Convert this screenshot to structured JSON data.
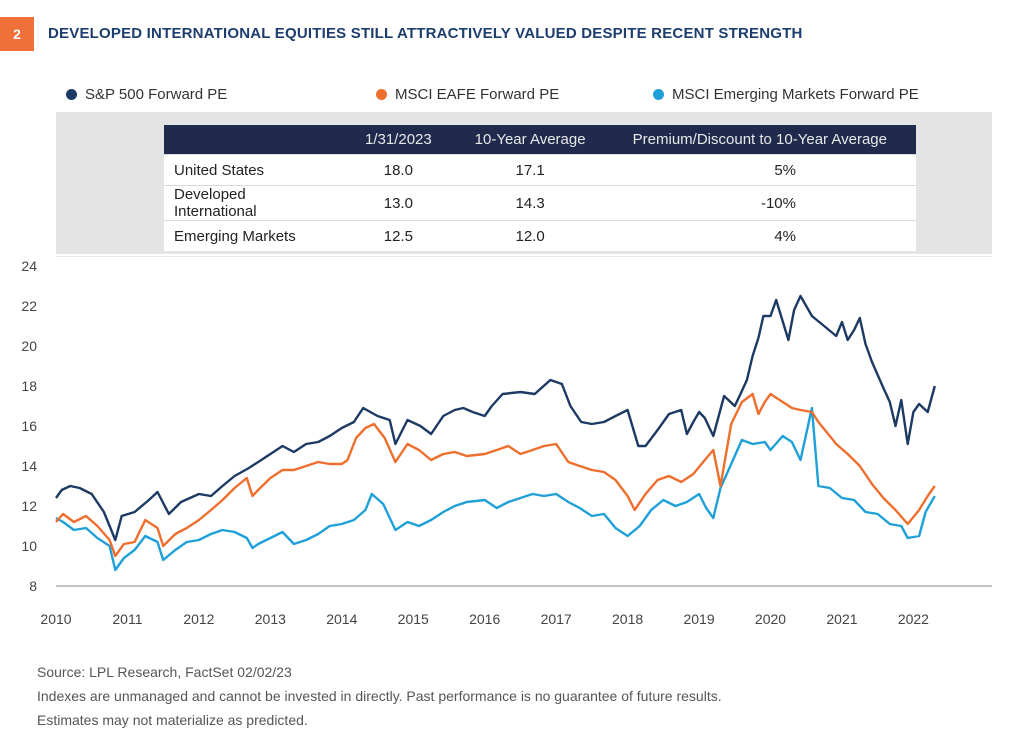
{
  "badge": "2",
  "title": "DEVELOPED INTERNATIONAL EQUITIES STILL ATTRACTIVELY VALUED DESPITE RECENT STRENGTH",
  "legend": [
    {
      "name": "S&P 500 Forward PE",
      "color": "#1c3a63"
    },
    {
      "name": "MSCI EAFE Forward PE",
      "color": "#ee6f2d"
    },
    {
      "name": "MSCI Emerging Markets Forward PE",
      "color": "#1fa0d8"
    }
  ],
  "table": {
    "headers": [
      "",
      "1/31/2023",
      "10-Year Average",
      "Premium/Discount to 10-Year Average"
    ],
    "rows": [
      [
        "United States",
        "18.0",
        "17.1",
        "5%"
      ],
      [
        "Developed International",
        "13.0",
        "14.3",
        "-10%"
      ],
      [
        "Emerging Markets",
        "12.5",
        "12.0",
        "4%"
      ]
    ]
  },
  "footer": {
    "source": "Source: LPL Research, FactSet  02/02/23",
    "line2": "Indexes are unmanaged and cannot be invested in directly. Past performance is no guarantee of future results.",
    "line3": "Estimates may not materialize as predicted."
  },
  "chart_data": {
    "type": "line",
    "ylim": [
      8,
      24
    ],
    "yticks": [
      8,
      10,
      12,
      14,
      16,
      18,
      20,
      22,
      24
    ],
    "xlim": [
      2010,
      2023.1
    ],
    "xticks": [
      "2010",
      "2011",
      "2012",
      "2013",
      "2014",
      "2015",
      "2016",
      "2017",
      "2018",
      "2019",
      "2020",
      "2021",
      "2022"
    ],
    "grid": false,
    "series": [
      {
        "name": "S&P 500 Forward PE",
        "color": "#1c3a63",
        "points": [
          [
            2010,
            12.4
          ],
          [
            2010.08,
            12.8
          ],
          [
            2010.2,
            13.0
          ],
          [
            2010.33,
            12.9
          ],
          [
            2010.5,
            12.6
          ],
          [
            2010.67,
            11.7
          ],
          [
            2010.83,
            10.3
          ],
          [
            2010.92,
            11.5
          ],
          [
            2011.1,
            11.7
          ],
          [
            2011.3,
            12.3
          ],
          [
            2011.42,
            12.7
          ],
          [
            2011.58,
            11.6
          ],
          [
            2011.75,
            12.2
          ],
          [
            2012,
            12.6
          ],
          [
            2012.17,
            12.5
          ],
          [
            2012.33,
            13.0
          ],
          [
            2012.5,
            13.5
          ],
          [
            2012.7,
            13.9
          ],
          [
            2012.83,
            14.2
          ],
          [
            2013,
            14.6
          ],
          [
            2013.17,
            15.0
          ],
          [
            2013.33,
            14.7
          ],
          [
            2013.5,
            15.1
          ],
          [
            2013.67,
            15.2
          ],
          [
            2013.83,
            15.5
          ],
          [
            2014,
            15.9
          ],
          [
            2014.17,
            16.2
          ],
          [
            2014.3,
            16.9
          ],
          [
            2014.5,
            16.5
          ],
          [
            2014.67,
            16.3
          ],
          [
            2014.75,
            15.1
          ],
          [
            2014.92,
            16.3
          ],
          [
            2015.1,
            16.0
          ],
          [
            2015.25,
            15.6
          ],
          [
            2015.42,
            16.5
          ],
          [
            2015.58,
            16.8
          ],
          [
            2015.7,
            16.9
          ],
          [
            2015.83,
            16.7
          ],
          [
            2016,
            16.5
          ],
          [
            2016.1,
            17.0
          ],
          [
            2016.25,
            17.6
          ],
          [
            2016.5,
            17.7
          ],
          [
            2016.7,
            17.6
          ],
          [
            2016.92,
            18.3
          ],
          [
            2017.08,
            18.1
          ],
          [
            2017.2,
            17.0
          ],
          [
            2017.35,
            16.2
          ],
          [
            2017.5,
            16.1
          ],
          [
            2017.67,
            16.2
          ],
          [
            2017.83,
            16.5
          ],
          [
            2018,
            16.8
          ],
          [
            2018.15,
            15.0
          ],
          [
            2018.25,
            15.0
          ],
          [
            2018.42,
            15.8
          ],
          [
            2018.58,
            16.6
          ],
          [
            2018.75,
            16.8
          ],
          [
            2018.83,
            15.6
          ],
          [
            2018.92,
            16.2
          ],
          [
            2019,
            16.7
          ],
          [
            2019.08,
            16.4
          ],
          [
            2019.2,
            15.5
          ],
          [
            2019.35,
            17.5
          ],
          [
            2019.5,
            17.0
          ],
          [
            2019.58,
            17.6
          ],
          [
            2019.67,
            18.3
          ],
          [
            2019.75,
            19.5
          ],
          [
            2019.83,
            20.4
          ],
          [
            2019.9,
            21.5
          ],
          [
            2020,
            21.5
          ],
          [
            2020.08,
            22.3
          ],
          [
            2020.25,
            20.3
          ],
          [
            2020.33,
            21.8
          ],
          [
            2020.42,
            22.5
          ],
          [
            2020.58,
            21.5
          ],
          [
            2020.75,
            21.0
          ],
          [
            2020.92,
            20.5
          ],
          [
            2021,
            21.2
          ],
          [
            2021.08,
            20.3
          ],
          [
            2021.17,
            20.8
          ],
          [
            2021.25,
            21.4
          ],
          [
            2021.33,
            20.1
          ],
          [
            2021.42,
            19.2
          ],
          [
            2021.58,
            17.9
          ],
          [
            2021.67,
            17.2
          ],
          [
            2021.75,
            16.0
          ],
          [
            2021.83,
            17.3
          ],
          [
            2021.92,
            15.1
          ],
          [
            2022,
            16.7
          ],
          [
            2022.08,
            17.1
          ],
          [
            2022.2,
            16.7
          ],
          [
            2022.3,
            18.0
          ]
        ]
      },
      {
        "name": "MSCI EAFE Forward PE",
        "color": "#ee6f2d",
        "points": [
          [
            2010,
            11.2
          ],
          [
            2010.1,
            11.6
          ],
          [
            2010.25,
            11.2
          ],
          [
            2010.42,
            11.5
          ],
          [
            2010.58,
            11.0
          ],
          [
            2010.75,
            10.3
          ],
          [
            2010.83,
            9.5
          ],
          [
            2010.95,
            10.1
          ],
          [
            2011.1,
            10.2
          ],
          [
            2011.25,
            11.3
          ],
          [
            2011.42,
            10.9
          ],
          [
            2011.5,
            10.0
          ],
          [
            2011.67,
            10.6
          ],
          [
            2011.83,
            10.9
          ],
          [
            2012,
            11.3
          ],
          [
            2012.17,
            11.8
          ],
          [
            2012.33,
            12.3
          ],
          [
            2012.5,
            12.9
          ],
          [
            2012.67,
            13.4
          ],
          [
            2012.75,
            12.5
          ],
          [
            2012.83,
            12.8
          ],
          [
            2013,
            13.4
          ],
          [
            2013.17,
            13.8
          ],
          [
            2013.33,
            13.8
          ],
          [
            2013.5,
            14.0
          ],
          [
            2013.67,
            14.2
          ],
          [
            2013.83,
            14.1
          ],
          [
            2014,
            14.1
          ],
          [
            2014.08,
            14.3
          ],
          [
            2014.2,
            15.4
          ],
          [
            2014.33,
            15.9
          ],
          [
            2014.45,
            16.1
          ],
          [
            2014.6,
            15.4
          ],
          [
            2014.75,
            14.2
          ],
          [
            2014.92,
            15.1
          ],
          [
            2015.08,
            14.8
          ],
          [
            2015.25,
            14.3
          ],
          [
            2015.42,
            14.6
          ],
          [
            2015.58,
            14.7
          ],
          [
            2015.75,
            14.5
          ],
          [
            2016,
            14.6
          ],
          [
            2016.17,
            14.8
          ],
          [
            2016.33,
            15.0
          ],
          [
            2016.5,
            14.6
          ],
          [
            2016.67,
            14.8
          ],
          [
            2016.83,
            15.0
          ],
          [
            2017,
            15.1
          ],
          [
            2017.17,
            14.2
          ],
          [
            2017.33,
            14.0
          ],
          [
            2017.5,
            13.8
          ],
          [
            2017.67,
            13.7
          ],
          [
            2017.83,
            13.3
          ],
          [
            2018,
            12.5
          ],
          [
            2018.1,
            11.8
          ],
          [
            2018.25,
            12.6
          ],
          [
            2018.42,
            13.3
          ],
          [
            2018.58,
            13.5
          ],
          [
            2018.75,
            13.2
          ],
          [
            2018.92,
            13.6
          ],
          [
            2019.08,
            14.3
          ],
          [
            2019.2,
            14.8
          ],
          [
            2019.3,
            13.0
          ],
          [
            2019.45,
            16.1
          ],
          [
            2019.6,
            17.2
          ],
          [
            2019.75,
            17.6
          ],
          [
            2019.83,
            16.6
          ],
          [
            2019.92,
            17.2
          ],
          [
            2020,
            17.6
          ],
          [
            2020.17,
            17.2
          ],
          [
            2020.3,
            16.9
          ],
          [
            2020.42,
            16.8
          ],
          [
            2020.58,
            16.7
          ],
          [
            2020.67,
            16.2
          ],
          [
            2020.83,
            15.5
          ],
          [
            2020.92,
            15.1
          ],
          [
            2021.08,
            14.6
          ],
          [
            2021.25,
            14.0
          ],
          [
            2021.42,
            13.1
          ],
          [
            2021.58,
            12.4
          ],
          [
            2021.75,
            11.8
          ],
          [
            2021.92,
            11.1
          ],
          [
            2022.08,
            11.8
          ],
          [
            2022.2,
            12.5
          ],
          [
            2022.3,
            13.0
          ]
        ]
      },
      {
        "name": "MSCI Emerging Markets Forward PE",
        "color": "#1fa0d8",
        "points": [
          [
            2010,
            11.4
          ],
          [
            2010.1,
            11.2
          ],
          [
            2010.25,
            10.8
          ],
          [
            2010.42,
            10.9
          ],
          [
            2010.58,
            10.4
          ],
          [
            2010.75,
            10.0
          ],
          [
            2010.83,
            8.8
          ],
          [
            2010.95,
            9.4
          ],
          [
            2011.1,
            9.8
          ],
          [
            2011.25,
            10.5
          ],
          [
            2011.42,
            10.2
          ],
          [
            2011.5,
            9.3
          ],
          [
            2011.67,
            9.8
          ],
          [
            2011.83,
            10.2
          ],
          [
            2012,
            10.3
          ],
          [
            2012.17,
            10.6
          ],
          [
            2012.33,
            10.8
          ],
          [
            2012.5,
            10.7
          ],
          [
            2012.67,
            10.4
          ],
          [
            2012.75,
            9.9
          ],
          [
            2012.83,
            10.1
          ],
          [
            2013,
            10.4
          ],
          [
            2013.17,
            10.7
          ],
          [
            2013.33,
            10.1
          ],
          [
            2013.5,
            10.3
          ],
          [
            2013.67,
            10.6
          ],
          [
            2013.83,
            11.0
          ],
          [
            2014,
            11.1
          ],
          [
            2014.17,
            11.3
          ],
          [
            2014.33,
            11.8
          ],
          [
            2014.42,
            12.6
          ],
          [
            2014.58,
            12.1
          ],
          [
            2014.75,
            10.8
          ],
          [
            2014.92,
            11.2
          ],
          [
            2015.08,
            11.0
          ],
          [
            2015.25,
            11.3
          ],
          [
            2015.42,
            11.7
          ],
          [
            2015.58,
            12.0
          ],
          [
            2015.75,
            12.2
          ],
          [
            2016,
            12.3
          ],
          [
            2016.17,
            11.9
          ],
          [
            2016.33,
            12.2
          ],
          [
            2016.5,
            12.4
          ],
          [
            2016.67,
            12.6
          ],
          [
            2016.83,
            12.5
          ],
          [
            2017,
            12.6
          ],
          [
            2017.17,
            12.2
          ],
          [
            2017.33,
            11.9
          ],
          [
            2017.5,
            11.5
          ],
          [
            2017.67,
            11.6
          ],
          [
            2017.83,
            10.9
          ],
          [
            2018,
            10.5
          ],
          [
            2018.17,
            11.0
          ],
          [
            2018.33,
            11.8
          ],
          [
            2018.5,
            12.3
          ],
          [
            2018.67,
            12.0
          ],
          [
            2018.83,
            12.2
          ],
          [
            2019,
            12.6
          ],
          [
            2019.1,
            11.9
          ],
          [
            2019.2,
            11.4
          ],
          [
            2019.3,
            12.9
          ],
          [
            2019.45,
            14.1
          ],
          [
            2019.6,
            15.3
          ],
          [
            2019.75,
            15.1
          ],
          [
            2019.92,
            15.2
          ],
          [
            2020,
            14.8
          ],
          [
            2020.17,
            15.5
          ],
          [
            2020.3,
            15.2
          ],
          [
            2020.42,
            14.3
          ],
          [
            2020.58,
            16.9
          ],
          [
            2020.67,
            13.0
          ],
          [
            2020.83,
            12.9
          ],
          [
            2021,
            12.4
          ],
          [
            2021.17,
            12.3
          ],
          [
            2021.33,
            11.7
          ],
          [
            2021.5,
            11.6
          ],
          [
            2021.67,
            11.1
          ],
          [
            2021.83,
            11.0
          ],
          [
            2021.92,
            10.4
          ],
          [
            2022.08,
            10.5
          ],
          [
            2022.17,
            11.7
          ],
          [
            2022.3,
            12.5
          ]
        ]
      }
    ]
  }
}
